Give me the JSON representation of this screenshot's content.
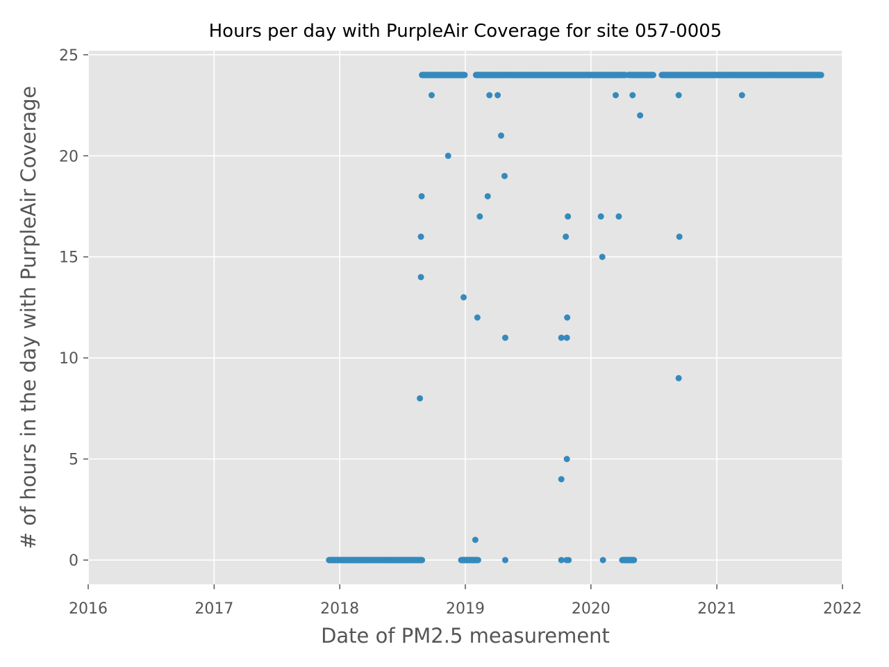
{
  "chart_data": {
    "type": "scatter",
    "title": "Hours per day with PurpleAir Coverage for site 057-0005",
    "xlabel": "Date of PM2.5 measurement",
    "ylabel": "# of hours in the day with PurpleAir Coverage",
    "xlim": [
      "2016-01-01",
      "2022-01-01"
    ],
    "ylim": [
      -1.2,
      25.2
    ],
    "grid": true,
    "x_ticks": [
      "2016",
      "2017",
      "2018",
      "2019",
      "2020",
      "2021",
      "2022"
    ],
    "y_ticks": [
      "0",
      "5",
      "10",
      "15",
      "20",
      "25"
    ],
    "colors": {
      "point": "#348abd",
      "plot_background": "#e5e5e5",
      "grid": "#ffffff",
      "tick_text": "#555555",
      "title_text": "#000000"
    },
    "series": [
      {
        "dense_runs": [
          {
            "start": "2017-12-01",
            "end": "2018-08-28",
            "y": 0
          },
          {
            "start": "2018-12-20",
            "end": "2019-02-07",
            "y": 0
          },
          {
            "start": "2020-04-01",
            "end": "2020-05-05",
            "y": 0
          },
          {
            "start": "2018-08-28",
            "end": "2018-12-30",
            "y": 24
          },
          {
            "start": "2019-02-01",
            "end": "2020-04-10",
            "y": 24
          },
          {
            "start": "2020-04-20",
            "end": "2020-06-30",
            "y": 24
          },
          {
            "start": "2020-07-25",
            "end": "2021-10-31",
            "y": 24
          }
        ],
        "points": [
          {
            "x": "2018-08-22",
            "y": 8
          },
          {
            "x": "2018-08-25",
            "y": 14
          },
          {
            "x": "2018-08-25",
            "y": 16
          },
          {
            "x": "2018-08-27",
            "y": 18
          },
          {
            "x": "2018-09-25",
            "y": 23
          },
          {
            "x": "2018-11-12",
            "y": 20
          },
          {
            "x": "2018-12-27",
            "y": 13
          },
          {
            "x": "2019-01-30",
            "y": 1
          },
          {
            "x": "2019-02-05",
            "y": 12
          },
          {
            "x": "2019-02-12",
            "y": 17
          },
          {
            "x": "2019-03-07",
            "y": 18
          },
          {
            "x": "2019-03-12",
            "y": 23
          },
          {
            "x": "2019-04-05",
            "y": 23
          },
          {
            "x": "2019-04-15",
            "y": 21
          },
          {
            "x": "2019-04-25",
            "y": 19
          },
          {
            "x": "2019-04-27",
            "y": 11
          },
          {
            "x": "2019-04-27",
            "y": 0
          },
          {
            "x": "2019-10-07",
            "y": 4
          },
          {
            "x": "2019-10-07",
            "y": 11
          },
          {
            "x": "2019-10-07",
            "y": 0
          },
          {
            "x": "2019-10-20",
            "y": 16
          },
          {
            "x": "2019-10-22",
            "y": 0
          },
          {
            "x": "2019-10-23",
            "y": 5
          },
          {
            "x": "2019-10-23",
            "y": 11
          },
          {
            "x": "2019-10-24",
            "y": 12
          },
          {
            "x": "2019-10-26",
            "y": 17
          },
          {
            "x": "2019-10-28",
            "y": 0
          },
          {
            "x": "2020-01-30",
            "y": 17
          },
          {
            "x": "2020-02-03",
            "y": 15
          },
          {
            "x": "2020-02-05",
            "y": 0
          },
          {
            "x": "2020-03-13",
            "y": 23
          },
          {
            "x": "2020-03-22",
            "y": 17
          },
          {
            "x": "2020-05-01",
            "y": 23
          },
          {
            "x": "2020-05-23",
            "y": 22
          },
          {
            "x": "2020-09-12",
            "y": 23
          },
          {
            "x": "2020-09-12",
            "y": 9
          },
          {
            "x": "2020-09-14",
            "y": 16
          },
          {
            "x": "2021-03-15",
            "y": 23
          }
        ]
      }
    ]
  }
}
